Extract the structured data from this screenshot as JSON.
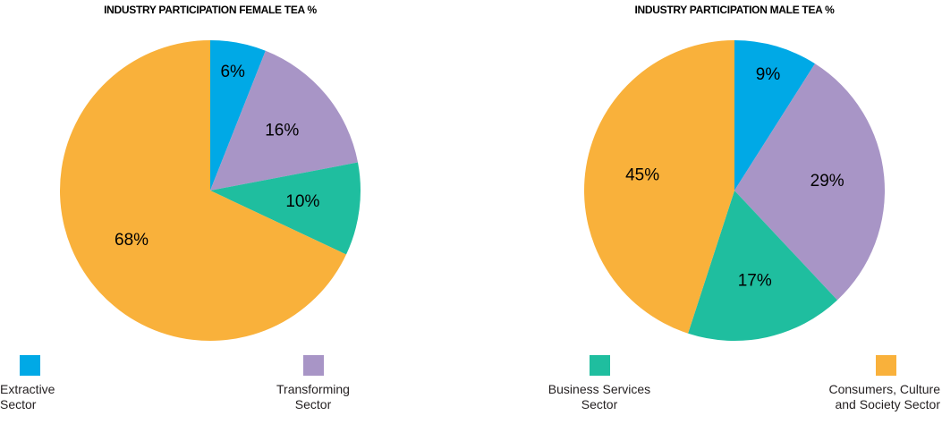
{
  "chart_data": [
    {
      "type": "pie",
      "title": "INDUSTRY PARTICIPATION FEMALE TEA %",
      "categories": [
        "Extractive Sector",
        "Transforming Sector",
        "Business Services Sector",
        "Consumers, Culture and Society Sector"
      ],
      "values": [
        6,
        16,
        10,
        68
      ],
      "value_labels": [
        "6%",
        "16%",
        "10%",
        "68%"
      ],
      "colors": [
        "#00a9e6",
        "#a895c6",
        "#1fbe9f",
        "#f9b13b"
      ]
    },
    {
      "type": "pie",
      "title": "INDUSTRY PARTICIPATION MALE TEA %",
      "categories": [
        "Extractive Sector",
        "Transforming Sector",
        "Business Services Sector",
        "Consumers, Culture and Society Sector"
      ],
      "values": [
        9,
        29,
        17,
        45
      ],
      "value_labels": [
        "9%",
        "29%",
        "17%",
        "45%"
      ],
      "colors": [
        "#00a9e6",
        "#a895c6",
        "#1fbe9f",
        "#f9b13b"
      ]
    }
  ]
}
